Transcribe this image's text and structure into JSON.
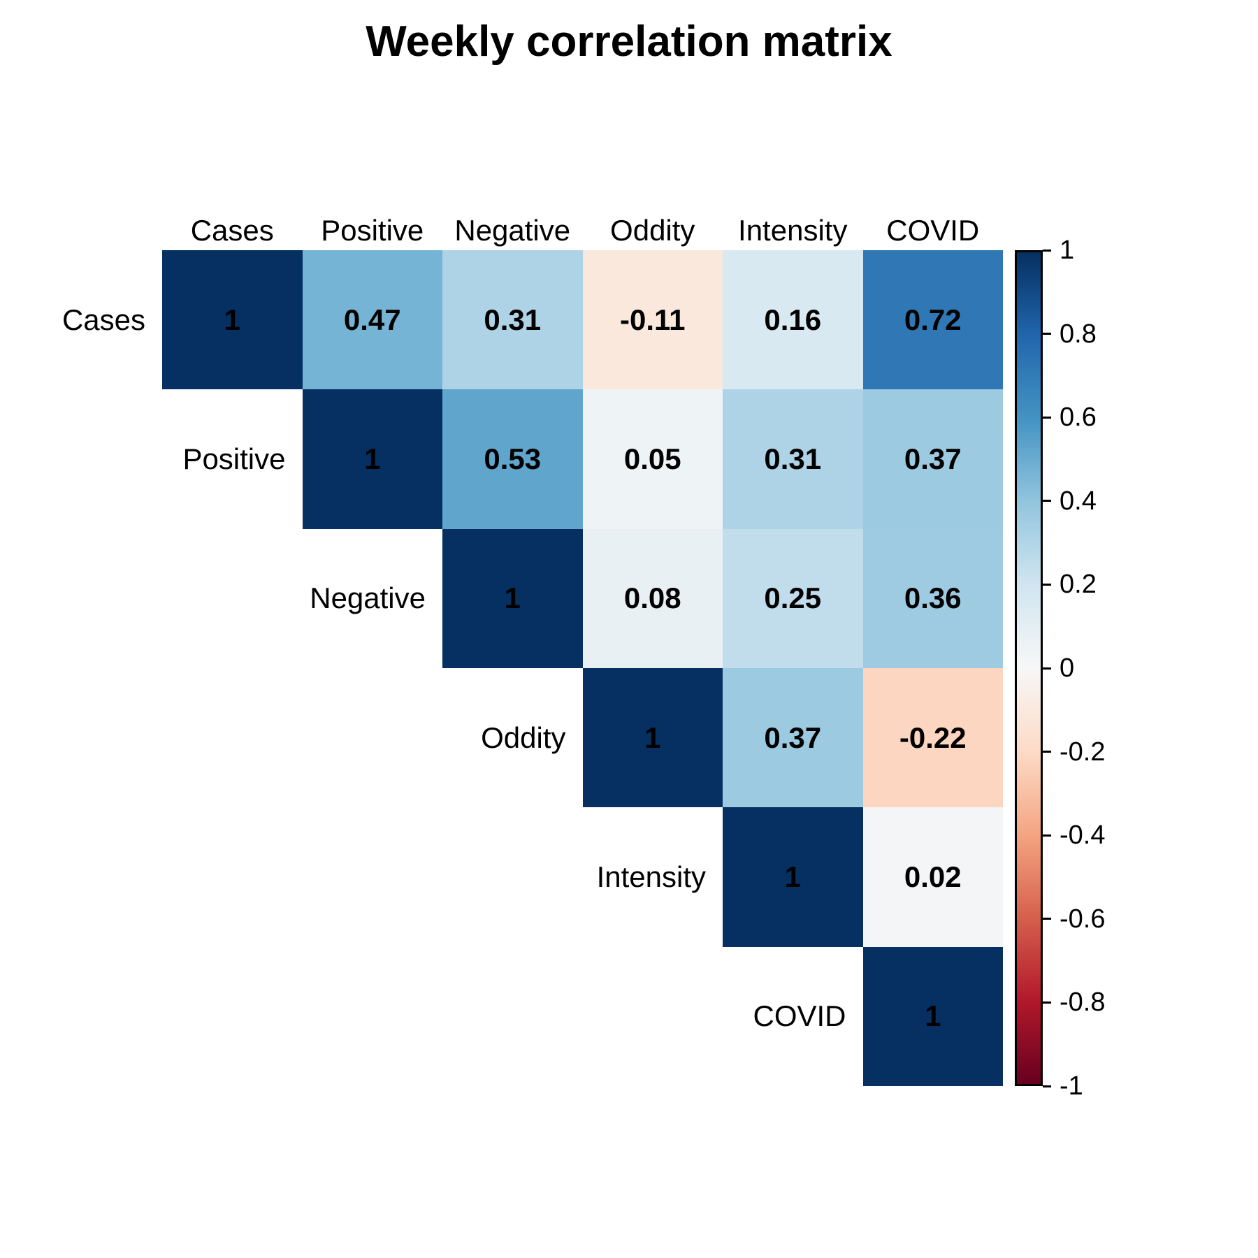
{
  "title": "Weekly correlation matrix",
  "chart_data": {
    "type": "heatmap",
    "subtype": "correlation-matrix-upper-triangular",
    "title": "Weekly correlation matrix",
    "variables": [
      "Cases",
      "Positive",
      "Negative",
      "Oddity",
      "Intensity",
      "COVID"
    ],
    "series": [
      {
        "name": "Cases",
        "values": [
          1,
          0.47,
          0.31,
          -0.11,
          0.16,
          0.72
        ]
      },
      {
        "name": "Positive",
        "values": [
          null,
          1,
          0.53,
          0.05,
          0.31,
          0.37
        ]
      },
      {
        "name": "Negative",
        "values": [
          null,
          null,
          1,
          0.08,
          0.25,
          0.36
        ]
      },
      {
        "name": "Oddity",
        "values": [
          null,
          null,
          null,
          1,
          0.37,
          -0.22
        ]
      },
      {
        "name": "Intensity",
        "values": [
          null,
          null,
          null,
          null,
          1,
          0.02
        ]
      },
      {
        "name": "COVID",
        "values": [
          null,
          null,
          null,
          null,
          null,
          1
        ]
      }
    ],
    "value_range": [
      -1,
      1
    ],
    "grid": false,
    "legend_position": "right",
    "background": "#FFFFFF",
    "text_color": "#000000",
    "colorbar": {
      "min": -1,
      "max": 1,
      "tick_labels": [
        "1",
        "0.8",
        "0.6",
        "0.4",
        "0.2",
        "0",
        "-0.2",
        "-0.4",
        "-0.6",
        "-0.8",
        "-1"
      ],
      "palette_name": "RdBu",
      "palette_stops": [
        {
          "value": -1.0,
          "color": "#67001F"
        },
        {
          "value": -0.8,
          "color": "#B2182B"
        },
        {
          "value": -0.6,
          "color": "#D6604D"
        },
        {
          "value": -0.4,
          "color": "#F4A582"
        },
        {
          "value": -0.2,
          "color": "#FDDBC7"
        },
        {
          "value": 0.0,
          "color": "#F7F7F7"
        },
        {
          "value": 0.2,
          "color": "#D1E5F0"
        },
        {
          "value": 0.4,
          "color": "#92C5DE"
        },
        {
          "value": 0.6,
          "color": "#4393C3"
        },
        {
          "value": 0.8,
          "color": "#2166AC"
        },
        {
          "value": 1.0,
          "color": "#053061"
        }
      ]
    }
  }
}
